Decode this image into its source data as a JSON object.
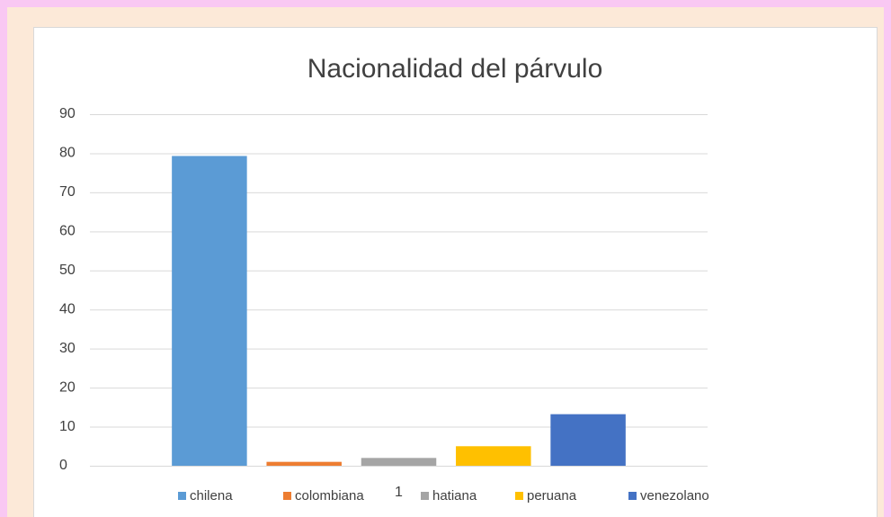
{
  "chart_data": {
    "type": "bar",
    "title": "Nacionalidad del párvulo",
    "categories": [
      "1"
    ],
    "series": [
      {
        "name": "chilena",
        "color": "#5b9bd5",
        "values": [
          79.3
        ]
      },
      {
        "name": "colombiana",
        "color": "#ed7d31",
        "values": [
          1
        ]
      },
      {
        "name": "hatiana",
        "color": "#a5a5a5",
        "values": [
          2
        ]
      },
      {
        "name": "peruana",
        "color": "#ffc000",
        "values": [
          5
        ]
      },
      {
        "name": "venezolano",
        "color": "#4472c4",
        "values": [
          13.2
        ]
      }
    ],
    "ylim": [
      0,
      90
    ],
    "yticks": [
      0,
      10,
      20,
      30,
      40,
      50,
      60,
      70,
      80,
      90
    ],
    "grid": true,
    "legend": "bottom"
  }
}
